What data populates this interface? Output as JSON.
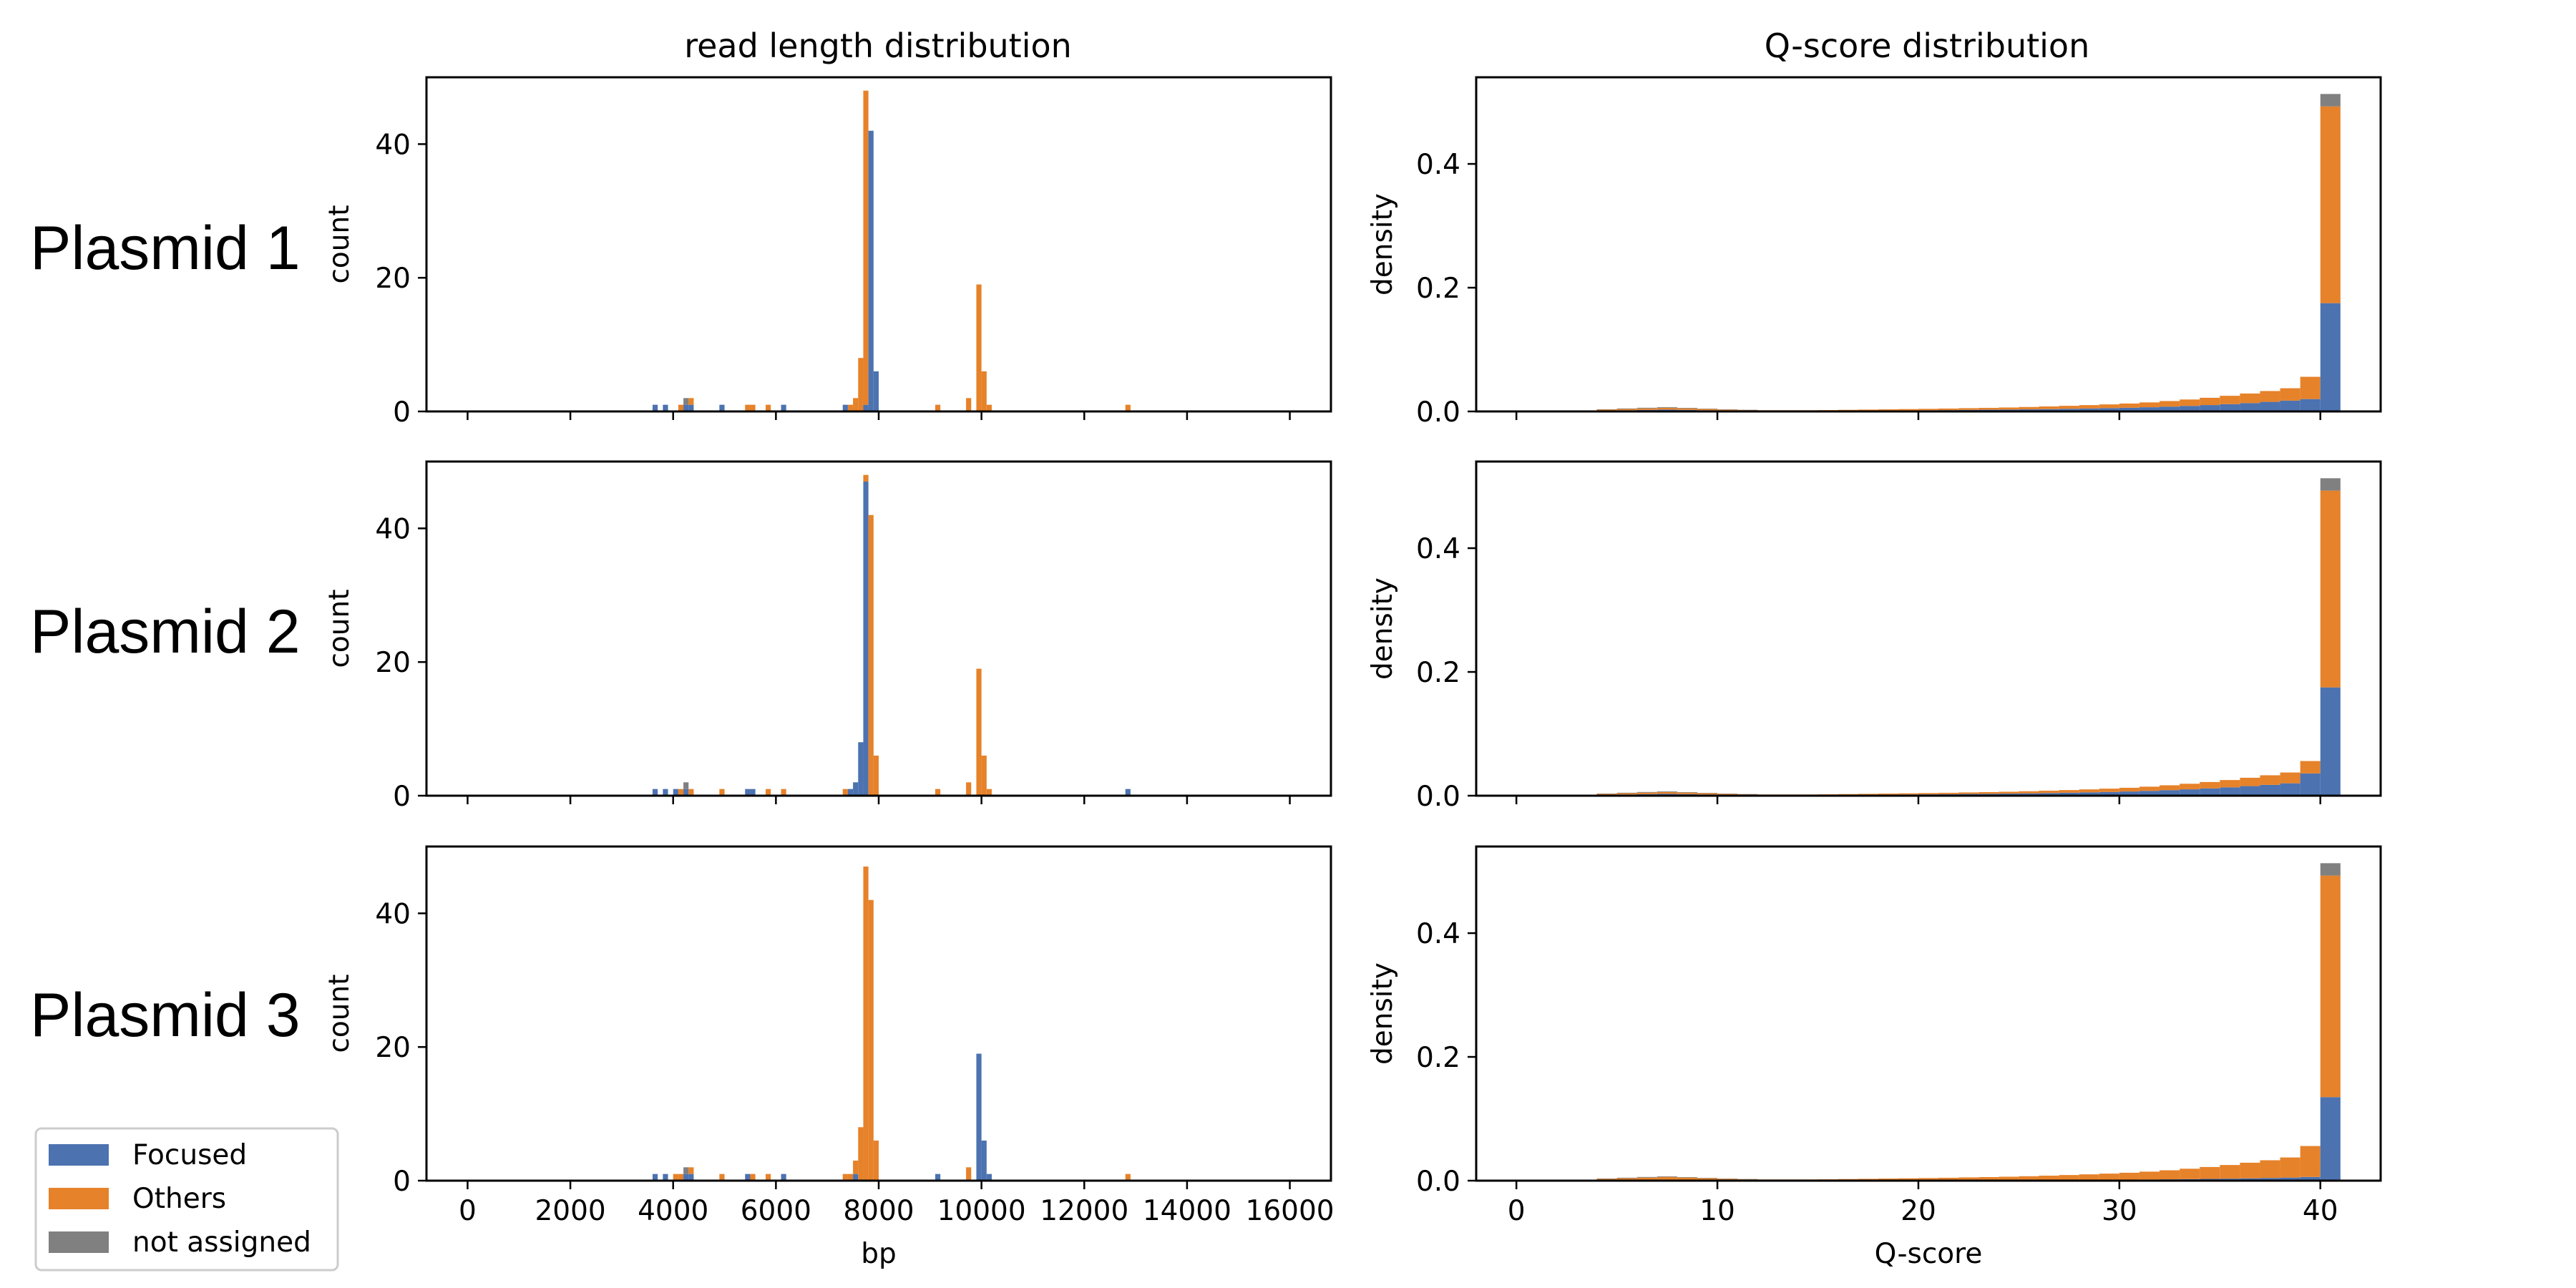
{
  "column_titles": {
    "length": "read length distribution",
    "qscore": "Q-score distribution"
  },
  "row_labels": [
    "Plasmid 1",
    "Plasmid 2",
    "Plasmid 3"
  ],
  "legend": {
    "entries": [
      {
        "label": "Focused",
        "color": "#4c72b0"
      },
      {
        "label": "Others",
        "color": "#e6822a"
      },
      {
        "label": "not assigned",
        "color": "#808080"
      }
    ],
    "placement": "lower-left"
  },
  "colors": {
    "focused": "#4c72b0",
    "others": "#e6822a",
    "not_assigned": "#808080"
  },
  "chart_data": [
    {
      "type": "bar",
      "stacked": true,
      "panel": "Plasmid 1 – read length",
      "title": "read length distribution",
      "xlabel": "",
      "ylabel": "count",
      "xlim": [
        -800,
        16800
      ],
      "ylim": [
        0,
        50
      ],
      "bin_width": 100,
      "xticks": [
        0,
        2000,
        4000,
        6000,
        8000,
        10000,
        12000,
        14000,
        16000
      ],
      "yticks": [
        0,
        20,
        40
      ],
      "x": [
        3600,
        3800,
        4000,
        4100,
        4200,
        4300,
        4900,
        5400,
        5500,
        5800,
        6100,
        7300,
        7400,
        7500,
        7600,
        7700,
        7800,
        7900,
        8000,
        9100,
        9700,
        9900,
        10000,
        10100,
        12800
      ],
      "series": [
        {
          "name": "Focused",
          "values": [
            1,
            1,
            0,
            0,
            1,
            1,
            1,
            0,
            0,
            0,
            1,
            1,
            0,
            0,
            0,
            1,
            42,
            6,
            0,
            0,
            0,
            0,
            0,
            0,
            0
          ]
        },
        {
          "name": "Others",
          "values": [
            0,
            0,
            0,
            1,
            0,
            1,
            0,
            1,
            1,
            1,
            0,
            0,
            1,
            2,
            8,
            47,
            0,
            0,
            0,
            1,
            2,
            19,
            6,
            1,
            1
          ]
        },
        {
          "name": "not assigned",
          "values": [
            0,
            0,
            0,
            0,
            1,
            0,
            0,
            0,
            0,
            0,
            0,
            0,
            0,
            0,
            0,
            0,
            0,
            0,
            0,
            0,
            0,
            0,
            0,
            0,
            0
          ]
        }
      ]
    },
    {
      "type": "bar",
      "stacked": true,
      "panel": "Plasmid 2 – read length",
      "title": "",
      "xlabel": "",
      "ylabel": "count",
      "xlim": [
        -800,
        16800
      ],
      "ylim": [
        0,
        50
      ],
      "bin_width": 100,
      "xticks": [
        0,
        2000,
        4000,
        6000,
        8000,
        10000,
        12000,
        14000,
        16000
      ],
      "yticks": [
        0,
        20,
        40
      ],
      "x": [
        3600,
        3800,
        4000,
        4100,
        4200,
        4300,
        4900,
        5400,
        5500,
        5800,
        6100,
        7300,
        7400,
        7500,
        7600,
        7700,
        7800,
        7900,
        8000,
        9100,
        9700,
        9900,
        10000,
        10100,
        12800
      ],
      "series": [
        {
          "name": "Focused",
          "values": [
            1,
            1,
            1,
            0,
            1,
            0,
            0,
            1,
            1,
            0,
            0,
            0,
            1,
            2,
            8,
            47,
            0,
            0,
            0,
            0,
            0,
            0,
            0,
            0,
            1
          ]
        },
        {
          "name": "Others",
          "values": [
            0,
            0,
            0,
            1,
            0,
            1,
            1,
            0,
            0,
            1,
            1,
            1,
            0,
            0,
            0,
            1,
            42,
            6,
            0,
            1,
            2,
            19,
            6,
            1,
            0
          ]
        },
        {
          "name": "not assigned",
          "values": [
            0,
            0,
            0,
            0,
            1,
            0,
            0,
            0,
            0,
            0,
            0,
            0,
            0,
            0,
            0,
            0,
            0,
            0,
            0,
            0,
            0,
            0,
            0,
            0,
            0
          ]
        }
      ]
    },
    {
      "type": "bar",
      "stacked": true,
      "panel": "Plasmid 3 – read length",
      "title": "",
      "xlabel": "bp",
      "ylabel": "count",
      "xlim": [
        -800,
        16800
      ],
      "ylim": [
        0,
        50
      ],
      "bin_width": 100,
      "xticks": [
        0,
        2000,
        4000,
        6000,
        8000,
        10000,
        12000,
        14000,
        16000
      ],
      "yticks": [
        0,
        20,
        40
      ],
      "x": [
        3600,
        3800,
        4000,
        4100,
        4200,
        4300,
        4900,
        5400,
        5500,
        5800,
        6100,
        7300,
        7400,
        7500,
        7600,
        7700,
        7800,
        7900,
        8000,
        9100,
        9700,
        9900,
        10000,
        10100,
        12800
      ],
      "series": [
        {
          "name": "Focused",
          "values": [
            1,
            1,
            0,
            0,
            1,
            1,
            0,
            1,
            0,
            0,
            1,
            0,
            0,
            1,
            0,
            0,
            0,
            0,
            0,
            1,
            0,
            19,
            6,
            1,
            0
          ]
        },
        {
          "name": "Others",
          "values": [
            0,
            0,
            1,
            1,
            0,
            1,
            1,
            0,
            1,
            1,
            0,
            1,
            1,
            2,
            8,
            47,
            42,
            6,
            0,
            0,
            2,
            0,
            0,
            0,
            1
          ]
        },
        {
          "name": "not assigned",
          "values": [
            0,
            0,
            0,
            0,
            1,
            0,
            0,
            0,
            0,
            0,
            0,
            0,
            0,
            0,
            0,
            0,
            0,
            0,
            0,
            0,
            0,
            0,
            0,
            0,
            0
          ]
        }
      ]
    },
    {
      "type": "bar",
      "stacked": true,
      "panel": "Plasmid 1 – Q-score",
      "title": "Q-score distribution",
      "xlabel": "",
      "ylabel": "density",
      "xlim": [
        -2,
        43
      ],
      "ylim": [
        0,
        0.54
      ],
      "bin_width": 1,
      "xticks": [
        0,
        10,
        20,
        30,
        40
      ],
      "yticks": [
        0.0,
        0.2,
        0.4
      ],
      "x": [
        0,
        1,
        2,
        3,
        4,
        5,
        6,
        7,
        8,
        9,
        10,
        11,
        12,
        13,
        14,
        15,
        16,
        17,
        18,
        19,
        20,
        21,
        22,
        23,
        24,
        25,
        26,
        27,
        28,
        29,
        30,
        31,
        32,
        33,
        34,
        35,
        36,
        37,
        38,
        39,
        40
      ],
      "series": [
        {
          "name": "Focused",
          "values": [
            0,
            0,
            0,
            0.0005,
            0.0015,
            0.002,
            0.0025,
            0.003,
            0.0025,
            0.002,
            0.0015,
            0.0012,
            0.001,
            0.001,
            0.001,
            0.001,
            0.0012,
            0.0014,
            0.0016,
            0.0018,
            0.002,
            0.0022,
            0.0025,
            0.0028,
            0.003,
            0.0034,
            0.0038,
            0.0043,
            0.0048,
            0.0054,
            0.006,
            0.0068,
            0.0078,
            0.009,
            0.0103,
            0.0118,
            0.0135,
            0.0155,
            0.0175,
            0.02,
            0.175
          ]
        },
        {
          "name": "Others",
          "values": [
            0,
            0,
            0,
            0.0005,
            0.0015,
            0.002,
            0.0025,
            0.003,
            0.0025,
            0.002,
            0.0015,
            0.0012,
            0.001,
            0.001,
            0.001,
            0.0012,
            0.0014,
            0.0016,
            0.0018,
            0.002,
            0.0022,
            0.0025,
            0.0028,
            0.003,
            0.0034,
            0.0038,
            0.0043,
            0.0048,
            0.0054,
            0.006,
            0.0068,
            0.0078,
            0.009,
            0.0103,
            0.0118,
            0.0135,
            0.0155,
            0.0175,
            0.02,
            0.036,
            0.318
          ]
        },
        {
          "name": "not assigned",
          "values": [
            0,
            0,
            0,
            0,
            0.0005,
            0.0008,
            0.001,
            0.001,
            0.0008,
            0.0005,
            0.0003,
            0.0002,
            0,
            0,
            0,
            0,
            0,
            0,
            0,
            0,
            0,
            0,
            0,
            0,
            0,
            0,
            0,
            0,
            0,
            0,
            0,
            0,
            0,
            0,
            0,
            0,
            0,
            0,
            0,
            0,
            0.02
          ]
        }
      ]
    },
    {
      "type": "bar",
      "stacked": true,
      "panel": "Plasmid 2 – Q-score",
      "title": "",
      "xlabel": "",
      "ylabel": "density",
      "xlim": [
        -2,
        43
      ],
      "ylim": [
        0,
        0.54
      ],
      "bin_width": 1,
      "xticks": [
        0,
        10,
        20,
        30,
        40
      ],
      "yticks": [
        0.0,
        0.2,
        0.4
      ],
      "x": [
        0,
        1,
        2,
        3,
        4,
        5,
        6,
        7,
        8,
        9,
        10,
        11,
        12,
        13,
        14,
        15,
        16,
        17,
        18,
        19,
        20,
        21,
        22,
        23,
        24,
        25,
        26,
        27,
        28,
        29,
        30,
        31,
        32,
        33,
        34,
        35,
        36,
        37,
        38,
        39,
        40
      ],
      "series": [
        {
          "name": "Focused",
          "values": [
            0,
            0,
            0,
            0.0005,
            0.0015,
            0.002,
            0.0025,
            0.003,
            0.0025,
            0.002,
            0.0015,
            0.0012,
            0.001,
            0.001,
            0.001,
            0.0012,
            0.0014,
            0.0016,
            0.0018,
            0.002,
            0.0022,
            0.0025,
            0.0028,
            0.003,
            0.0034,
            0.0038,
            0.0043,
            0.0048,
            0.0054,
            0.006,
            0.0068,
            0.0078,
            0.009,
            0.0103,
            0.0118,
            0.0135,
            0.0155,
            0.0175,
            0.02,
            0.036,
            0.175
          ]
        },
        {
          "name": "Others",
          "values": [
            0,
            0,
            0,
            0.0005,
            0.0015,
            0.002,
            0.0025,
            0.003,
            0.0025,
            0.002,
            0.0015,
            0.0012,
            0.001,
            0.001,
            0.001,
            0.001,
            0.0012,
            0.0014,
            0.0016,
            0.0018,
            0.002,
            0.0022,
            0.0025,
            0.0028,
            0.003,
            0.0034,
            0.0038,
            0.0043,
            0.0048,
            0.0054,
            0.006,
            0.0068,
            0.0078,
            0.009,
            0.0103,
            0.0118,
            0.0135,
            0.0155,
            0.0175,
            0.02,
            0.318
          ]
        },
        {
          "name": "not assigned",
          "values": [
            0,
            0,
            0,
            0,
            0.0005,
            0.0008,
            0.001,
            0.001,
            0.0008,
            0.0005,
            0.0003,
            0.0002,
            0,
            0,
            0,
            0,
            0,
            0,
            0,
            0,
            0,
            0,
            0,
            0,
            0,
            0,
            0,
            0,
            0,
            0,
            0,
            0,
            0,
            0,
            0,
            0,
            0,
            0,
            0,
            0,
            0.02
          ]
        }
      ]
    },
    {
      "type": "bar",
      "stacked": true,
      "panel": "Plasmid 3 – Q-score",
      "title": "",
      "xlabel": "Q-score",
      "ylabel": "density",
      "xlim": [
        -2,
        43
      ],
      "ylim": [
        0,
        0.54
      ],
      "bin_width": 1,
      "xticks": [
        0,
        10,
        20,
        30,
        40
      ],
      "yticks": [
        0.0,
        0.2,
        0.4
      ],
      "x": [
        0,
        1,
        2,
        3,
        4,
        5,
        6,
        7,
        8,
        9,
        10,
        11,
        12,
        13,
        14,
        15,
        16,
        17,
        18,
        19,
        20,
        21,
        22,
        23,
        24,
        25,
        26,
        27,
        28,
        29,
        30,
        31,
        32,
        33,
        34,
        35,
        36,
        37,
        38,
        39,
        40
      ],
      "series": [
        {
          "name": "Focused",
          "values": [
            0,
            0,
            0,
            0.0002,
            0.0005,
            0.0007,
            0.0008,
            0.001,
            0.0008,
            0.0007,
            0.0005,
            0.0004,
            0.0003,
            0.0003,
            0.0003,
            0.0003,
            0.0004,
            0.0004,
            0.0005,
            0.0005,
            0.0006,
            0.0006,
            0.0007,
            0.0008,
            0.0009,
            0.001,
            0.0011,
            0.0012,
            0.0014,
            0.0015,
            0.0017,
            0.0019,
            0.0022,
            0.0025,
            0.0029,
            0.0033,
            0.0038,
            0.0044,
            0.005,
            0.006,
            0.135
          ]
        },
        {
          "name": "Others",
          "values": [
            0,
            0,
            0,
            0.0008,
            0.0025,
            0.0033,
            0.0042,
            0.005,
            0.0042,
            0.0033,
            0.0025,
            0.002,
            0.0017,
            0.0017,
            0.0017,
            0.0019,
            0.0022,
            0.0026,
            0.0029,
            0.0033,
            0.0036,
            0.0041,
            0.0046,
            0.005,
            0.0055,
            0.0062,
            0.007,
            0.0079,
            0.0088,
            0.0099,
            0.0111,
            0.0127,
            0.0146,
            0.0168,
            0.0192,
            0.022,
            0.0252,
            0.0286,
            0.0325,
            0.05,
            0.358
          ]
        },
        {
          "name": "not assigned",
          "values": [
            0,
            0,
            0,
            0,
            0.0005,
            0.0008,
            0.001,
            0.001,
            0.0008,
            0.0005,
            0.0003,
            0.0002,
            0,
            0,
            0,
            0,
            0,
            0,
            0,
            0,
            0,
            0,
            0,
            0,
            0,
            0,
            0,
            0,
            0,
            0,
            0,
            0,
            0,
            0,
            0,
            0,
            0,
            0,
            0,
            0,
            0.02
          ]
        }
      ]
    }
  ]
}
